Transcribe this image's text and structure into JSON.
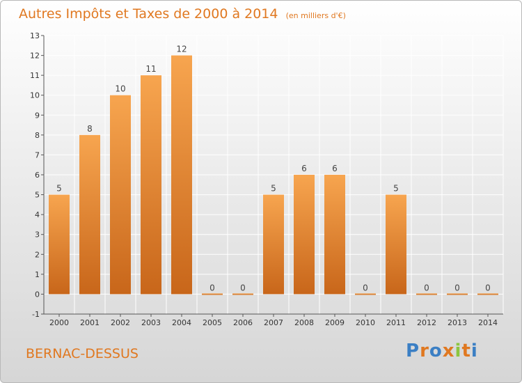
{
  "header": {
    "title": "Autres Impôts et Taxes de 2000 à 2014",
    "unit": "(en milliers d'€)"
  },
  "footer": {
    "commune": "BERNAC-DESSUS",
    "logo": "Proxiti",
    "logo_colors": [
      "#3b7fc4",
      "#e07820",
      "#3b7fc4",
      "#e07820",
      "#8cc63f",
      "#e07820",
      "#3b7fc4"
    ]
  },
  "chart_data": {
    "type": "bar",
    "title": "Autres Impôts et Taxes de 2000 à 2014",
    "categories": [
      "2000",
      "2001",
      "2002",
      "2003",
      "2004",
      "2005",
      "2006",
      "2007",
      "2008",
      "2009",
      "2010",
      "2011",
      "2012",
      "2013",
      "2014"
    ],
    "values": [
      5,
      8,
      10,
      11,
      12,
      0,
      0,
      5,
      6,
      6,
      0,
      5,
      0,
      0,
      0
    ],
    "ylim": [
      -1,
      13
    ],
    "yticks": [
      -1,
      0,
      1,
      2,
      3,
      4,
      5,
      6,
      7,
      8,
      9,
      10,
      11,
      12,
      13
    ],
    "grid": true,
    "colors": {
      "bar_light": "#f7a54f",
      "bar_dark": "#c8661a",
      "grid": "#ffffff",
      "axis": "#555555"
    }
  }
}
